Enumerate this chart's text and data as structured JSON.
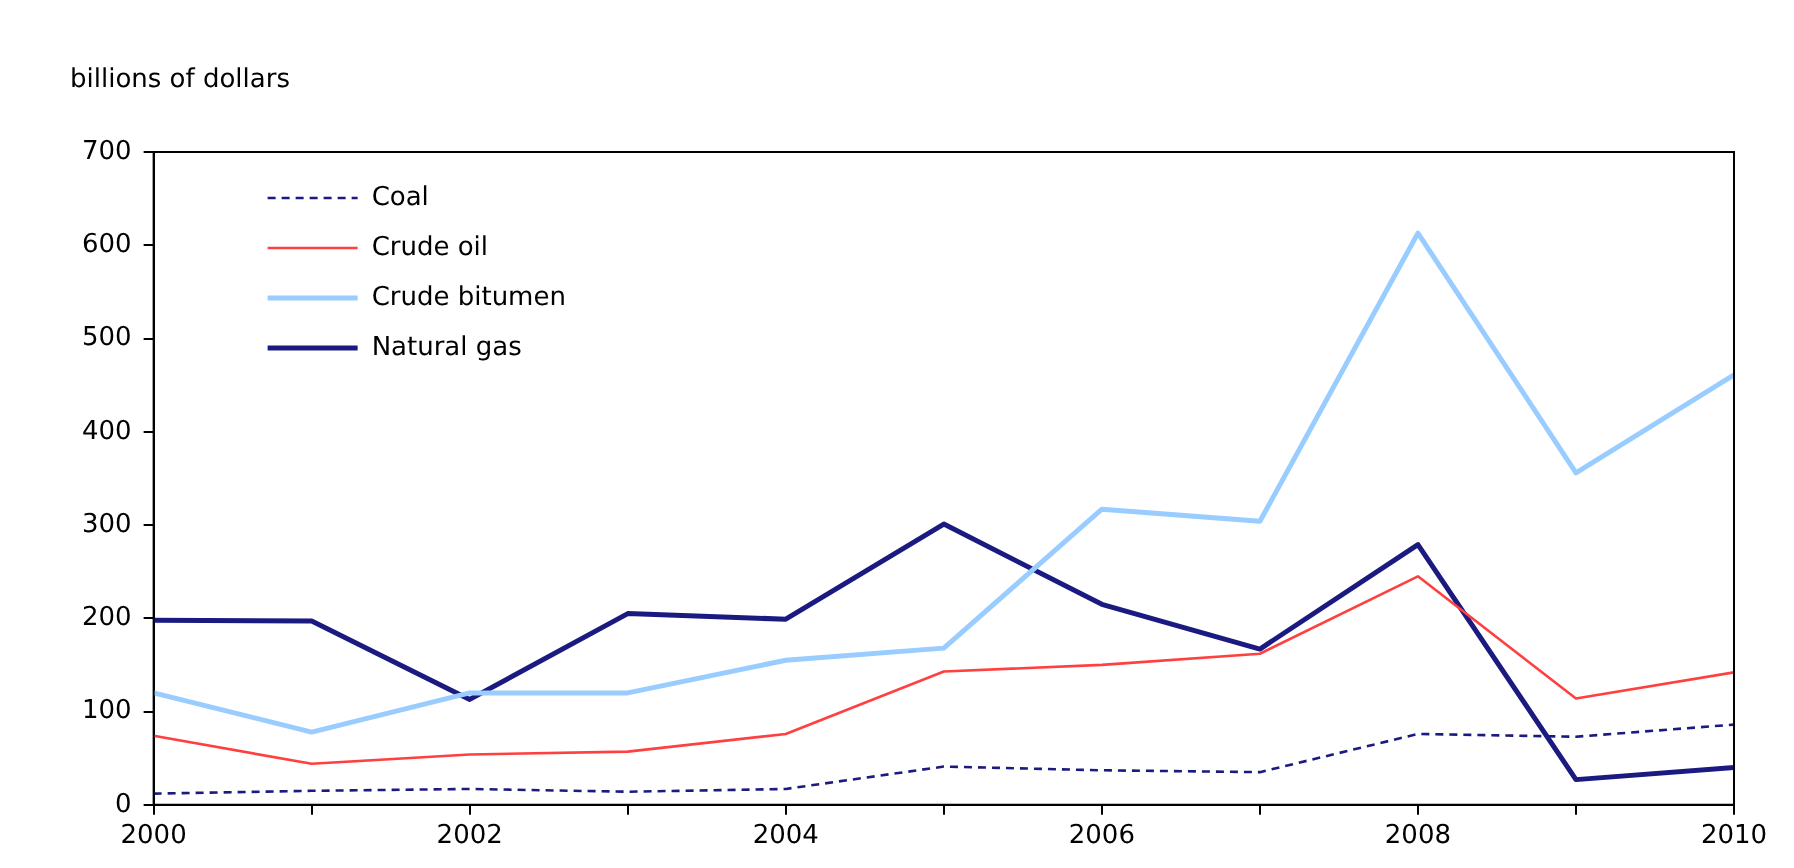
{
  "chart_data": {
    "type": "line",
    "ylabel": "billions of dollars",
    "x": [
      2000,
      2001,
      2002,
      2003,
      2004,
      2005,
      2006,
      2007,
      2008,
      2009,
      2010
    ],
    "xlim": [
      2000,
      2010
    ],
    "xticks": [
      2000,
      {
        "value": 2001,
        "label": null
      },
      2002,
      {
        "value": 2003,
        "label": null
      },
      2004,
      {
        "value": 2005,
        "label": null
      },
      2006,
      {
        "value": 2007,
        "label": null
      },
      2008,
      {
        "value": 2009,
        "label": null
      },
      2010
    ],
    "ylim": [
      0,
      700
    ],
    "yticks": [
      0,
      100,
      200,
      300,
      400,
      500,
      600,
      700
    ],
    "grid": false,
    "legend": "top left",
    "marker": "none",
    "series": [
      {
        "name": "Coal",
        "color": "#1a1a80",
        "line_style": "dashed",
        "values": [
          12,
          15,
          17,
          14,
          17,
          41,
          37,
          35,
          76,
          73,
          86
        ]
      },
      {
        "name": "Crude oil",
        "color": "#ff4040",
        "line_style": "solid",
        "values": [
          74,
          44,
          54,
          57,
          76,
          143,
          150,
          162,
          245,
          114,
          142
        ]
      },
      {
        "name": "Crude bitumen",
        "color": "#99ccff",
        "line_style": "solid",
        "values": [
          120,
          78,
          120,
          120,
          155,
          168,
          317,
          304,
          613,
          356,
          461
        ]
      },
      {
        "name": "Natural gas",
        "color": "#1a1a80",
        "line_style": "solid",
        "values": [
          198,
          197,
          113,
          205,
          199,
          301,
          215,
          167,
          279,
          27,
          40
        ]
      }
    ]
  }
}
